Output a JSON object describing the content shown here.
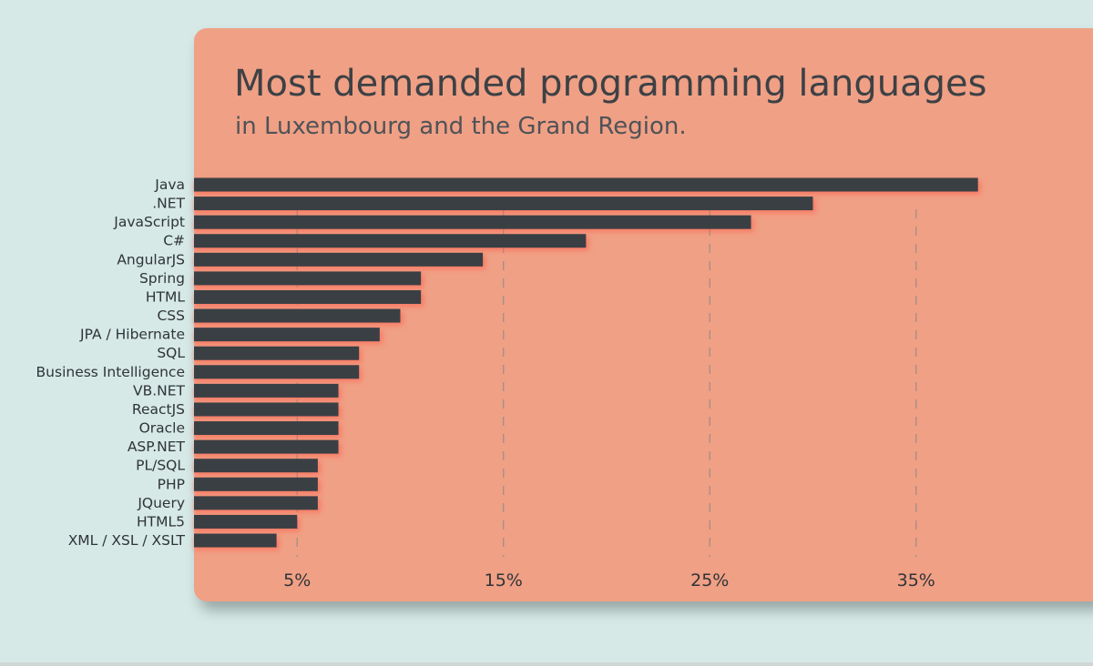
{
  "colors": {
    "background": "#d6e9e6",
    "card": "#f0a085",
    "bar": "#3a3f44",
    "text": "#3d4145",
    "bar_glow": "#ff5a4a"
  },
  "chart_data": {
    "type": "bar",
    "orientation": "horizontal",
    "title": "Most demanded programming languages",
    "subtitle": "in Luxembourg and the Grand Region.",
    "xlabel": "",
    "ylabel": "",
    "xlim": [
      0,
      38
    ],
    "xticks": [
      5,
      15,
      25,
      35
    ],
    "xtick_labels": [
      "5%",
      "15%",
      "25%",
      "35%"
    ],
    "grid": "vertical dashed",
    "categories": [
      "Java",
      ".NET",
      "JavaScript",
      "C#",
      "AngularJS",
      "Spring",
      "HTML",
      "CSS",
      "JPA / Hibernate",
      "SQL",
      "Business Intelligence",
      "VB.NET",
      "ReactJS",
      "Oracle",
      "ASP.NET",
      "PL/SQL",
      "PHP",
      "JQuery",
      "HTML5",
      "XML / XSL / XSLT"
    ],
    "values": [
      38,
      30,
      27,
      19,
      14,
      11,
      11,
      10,
      9,
      8,
      8,
      7,
      7,
      7,
      7,
      6,
      6,
      6,
      5,
      4
    ]
  }
}
